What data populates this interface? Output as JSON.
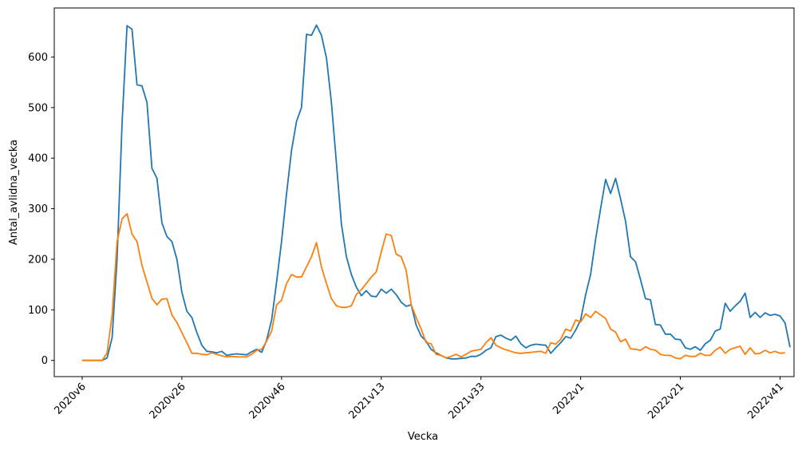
{
  "chart_data": {
    "type": "line",
    "xlabel": "Vecka",
    "ylabel": "Antal_avlidna_vecka",
    "x_ticks": [
      "2020v6",
      "2020v26",
      "2020v46",
      "2021v13",
      "2021v33",
      "2022v1",
      "2022v21",
      "2022v41"
    ],
    "x_tick_index": [
      0,
      20,
      40,
      60,
      80,
      100,
      120,
      140
    ],
    "y_ticks": [
      0,
      100,
      200,
      300,
      400,
      500,
      600
    ],
    "xlim": [
      -5.6,
      142.8
    ],
    "ylim": [
      -32,
      697
    ],
    "grid": false,
    "series": [
      {
        "color": "#1f77b4",
        "values": [
          0,
          0,
          0,
          0,
          0,
          5,
          45,
          200,
          470,
          662,
          655,
          545,
          543,
          510,
          380,
          360,
          272,
          245,
          235,
          200,
          135,
          97,
          85,
          55,
          30,
          18,
          17,
          15,
          18,
          10,
          12,
          13,
          12,
          11,
          17,
          22,
          16,
          40,
          80,
          155,
          235,
          330,
          415,
          473,
          500,
          645,
          643,
          663,
          643,
          598,
          510,
          390,
          270,
          205,
          170,
          145,
          128,
          138,
          127,
          126,
          141,
          133,
          141,
          130,
          115,
          107,
          110,
          70,
          48,
          38,
          22,
          15,
          10,
          5,
          3,
          3,
          4,
          5,
          8,
          8,
          12,
          20,
          25,
          47,
          50,
          44,
          40,
          48,
          33,
          25,
          30,
          32,
          31,
          30,
          14,
          25,
          35,
          47,
          44,
          60,
          80,
          130,
          170,
          240,
          300,
          358,
          330,
          360,
          320,
          275,
          205,
          195,
          160,
          122,
          120,
          71,
          70,
          52,
          52,
          42,
          41,
          25,
          22,
          27,
          20,
          33,
          40,
          58,
          62,
          113,
          97,
          108,
          117,
          133,
          85,
          95,
          85,
          94,
          89,
          91,
          88,
          74,
          26
        ],
        "y_note": ""
      },
      {
        "color": "#ff7f0e",
        "values": [
          0,
          0,
          0,
          0,
          0,
          15,
          90,
          235,
          280,
          290,
          250,
          235,
          188,
          155,
          123,
          110,
          121,
          122,
          90,
          75,
          55,
          35,
          14,
          14,
          12,
          11,
          15,
          12,
          9,
          7,
          8,
          7,
          7,
          7,
          12,
          20,
          22,
          38,
          58,
          110,
          119,
          152,
          170,
          165,
          165,
          185,
          205,
          233,
          185,
          152,
          122,
          108,
          105,
          105,
          108,
          130,
          140,
          152,
          165,
          175,
          215,
          250,
          247,
          210,
          205,
          178,
          110,
          85,
          62,
          35,
          33,
          12,
          10,
          5,
          8,
          12,
          7,
          12,
          18,
          20,
          22,
          35,
          45,
          30,
          25,
          21,
          18,
          15,
          14,
          15,
          16,
          17,
          18,
          14,
          35,
          32,
          42,
          62,
          58,
          80,
          76,
          92,
          85,
          97,
          90,
          83,
          62,
          56,
          37,
          42,
          23,
          22,
          20,
          27,
          22,
          20,
          12,
          10,
          10,
          5,
          3,
          10,
          8,
          8,
          14,
          10,
          10,
          20,
          26,
          14,
          22,
          25,
          28,
          12,
          25,
          13,
          14,
          20,
          15,
          18,
          14,
          15
        ]
      }
    ]
  }
}
